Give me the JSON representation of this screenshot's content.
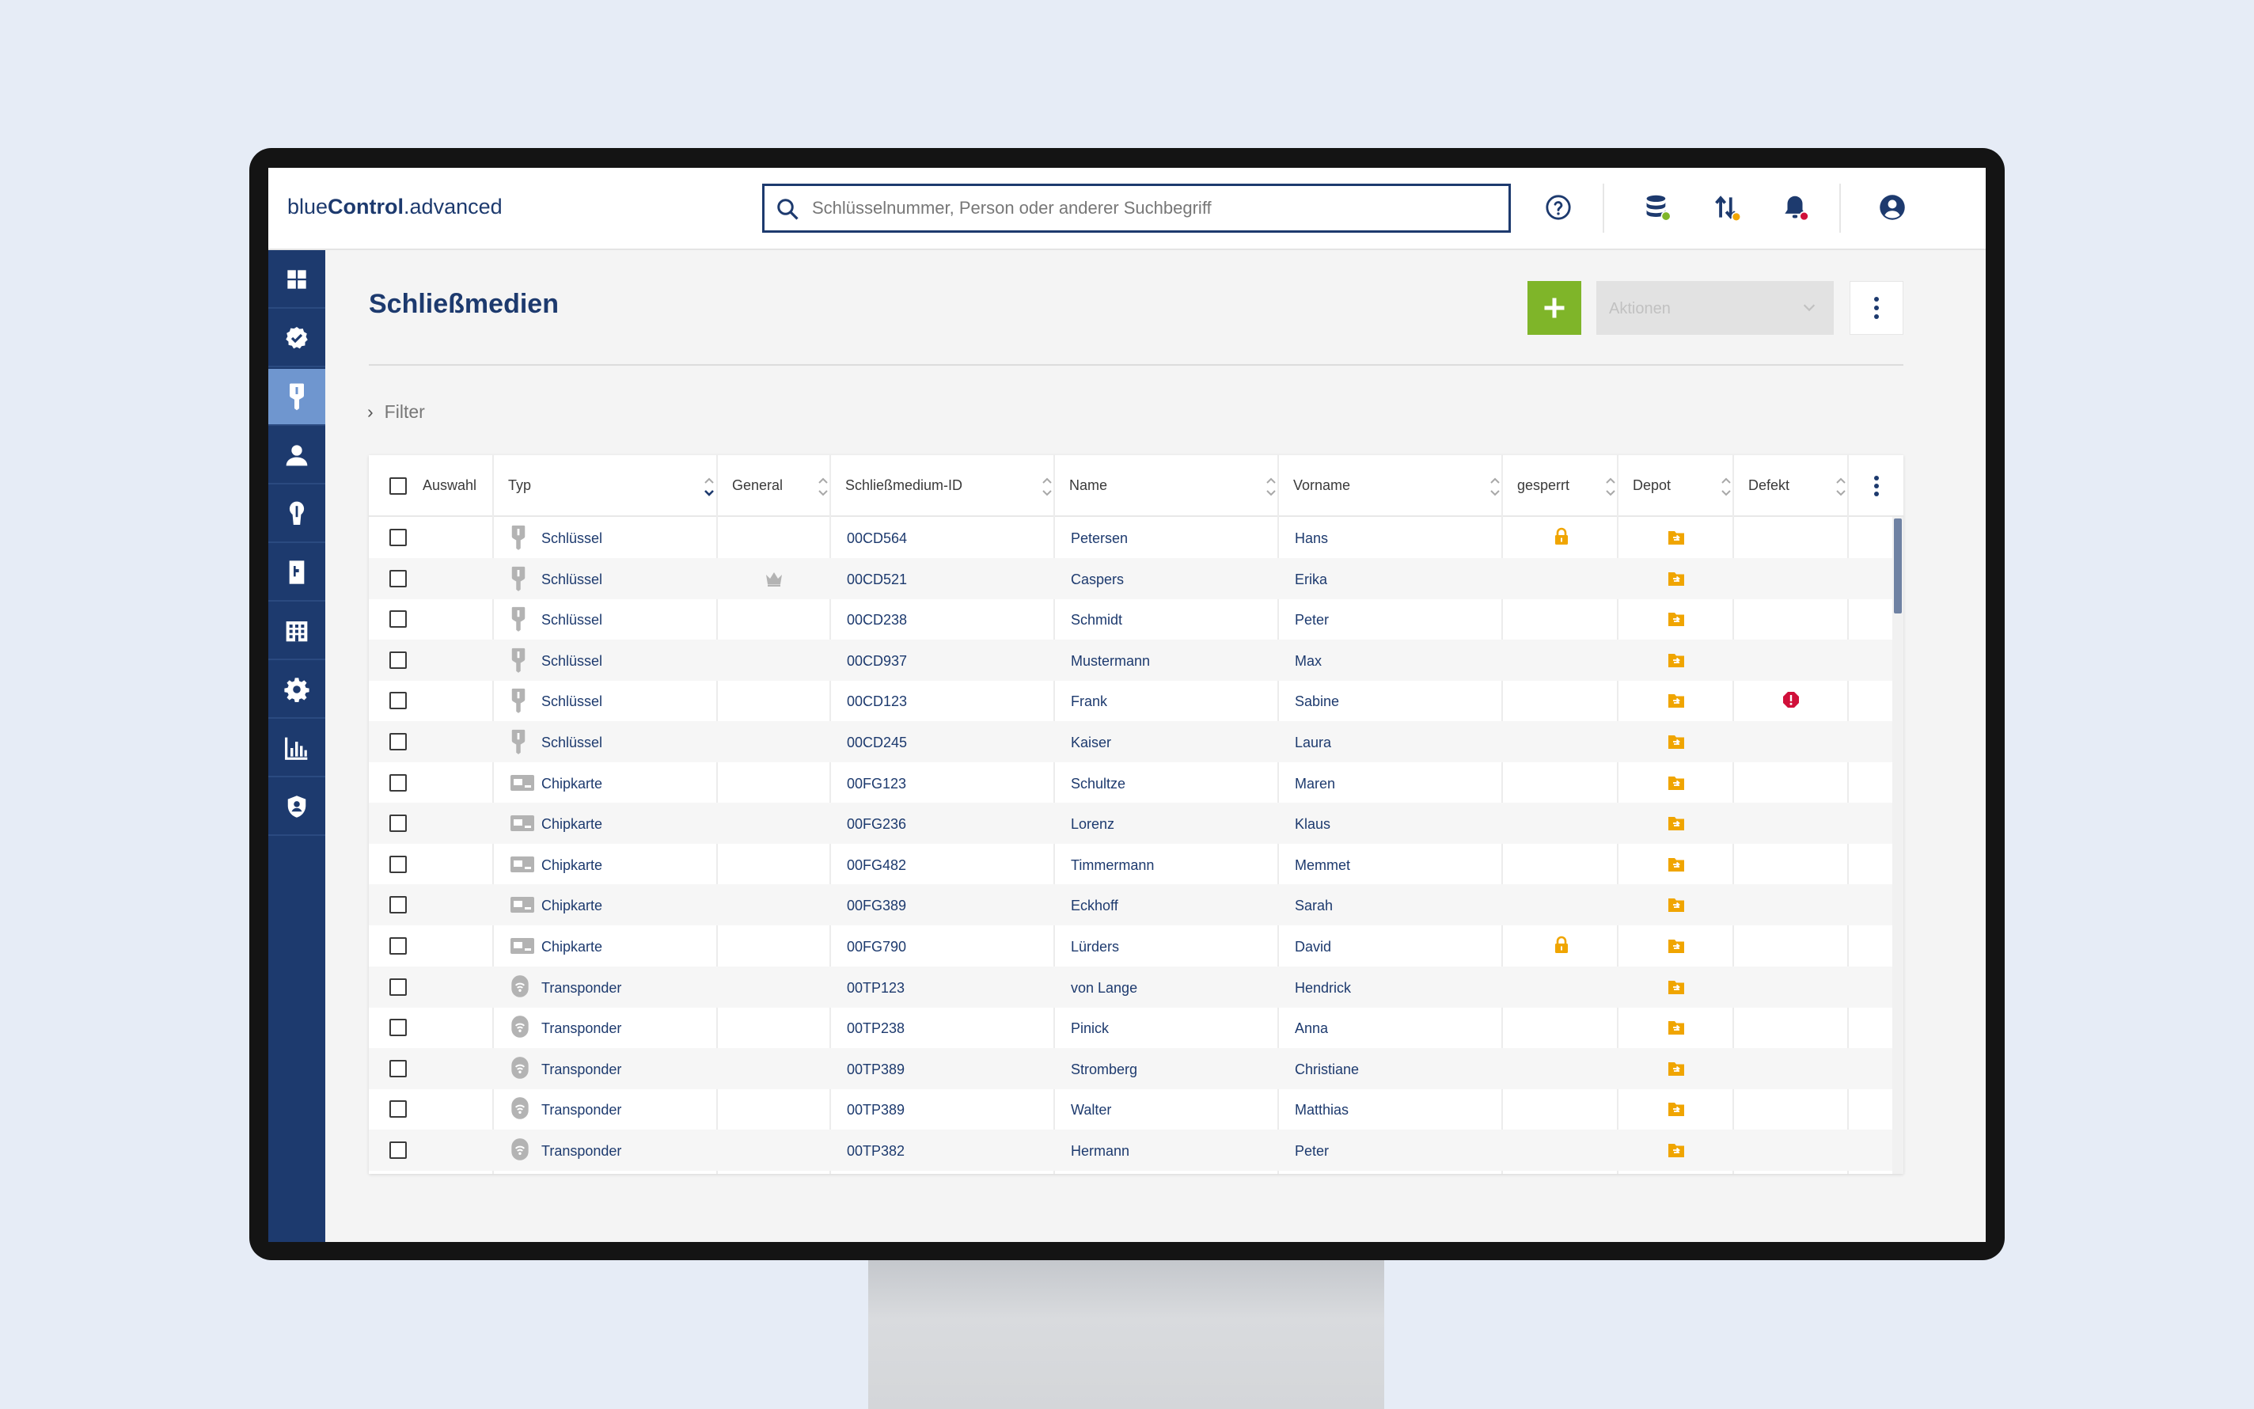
{
  "app": {
    "logo_light": "blue",
    "logo_bold": "Control",
    "logo_suffix": ".advanced"
  },
  "search": {
    "placeholder": "Schlüsselnummer, Person oder anderer Suchbegriff",
    "value": ""
  },
  "topbar": {
    "icons": [
      "help-icon",
      "database-icon",
      "sort-transfer-icon",
      "notification-bell-icon",
      "account-icon"
    ],
    "status_colors": {
      "database": "#7fb529",
      "transfer": "#f0a500",
      "bell": "#d0103a"
    }
  },
  "sidebar": {
    "items": [
      {
        "icon": "dashboard-icon",
        "active": false
      },
      {
        "icon": "badge-check-icon",
        "active": false
      },
      {
        "icon": "key-icon",
        "active": true
      },
      {
        "icon": "person-icon",
        "active": false
      },
      {
        "icon": "cylinder-lock-icon",
        "active": false
      },
      {
        "icon": "door-icon",
        "active": false
      },
      {
        "icon": "building-icon",
        "active": false
      },
      {
        "icon": "settings-icon",
        "active": false
      },
      {
        "icon": "chart-icon",
        "active": false
      },
      {
        "icon": "shield-user-icon",
        "active": false
      }
    ]
  },
  "page": {
    "title": "Schließmedien",
    "actions_label": "Aktionen",
    "filter_label": "Filter"
  },
  "colors": {
    "primary": "#1d3a6e",
    "accent_green": "#7fb529",
    "sidebar_active": "#6f96cf",
    "lock_orange": "#f0a500",
    "defect_red": "#d0103a"
  },
  "table": {
    "columns": [
      "Auswahl",
      "Typ",
      "General",
      "Schließmedium-ID",
      "Name",
      "Vorname",
      "gesperrt",
      "Depot",
      "Defekt"
    ],
    "rows": [
      {
        "typ": "Schlüssel",
        "type_icon": "key-icon",
        "general": false,
        "id": "00CD564",
        "name": "Petersen",
        "vorname": "Hans",
        "gesperrt": true,
        "depot": true,
        "defekt": false
      },
      {
        "typ": "Schlüssel",
        "type_icon": "key-icon",
        "general": true,
        "id": "00CD521",
        "name": "Caspers",
        "vorname": "Erika",
        "gesperrt": false,
        "depot": true,
        "defekt": false
      },
      {
        "typ": "Schlüssel",
        "type_icon": "key-icon",
        "general": false,
        "id": "00CD238",
        "name": "Schmidt",
        "vorname": "Peter",
        "gesperrt": false,
        "depot": true,
        "defekt": false
      },
      {
        "typ": "Schlüssel",
        "type_icon": "key-icon",
        "general": false,
        "id": "00CD937",
        "name": "Mustermann",
        "vorname": "Max",
        "gesperrt": false,
        "depot": true,
        "defekt": false
      },
      {
        "typ": "Schlüssel",
        "type_icon": "key-icon",
        "general": false,
        "id": "00CD123",
        "name": "Frank",
        "vorname": "Sabine",
        "gesperrt": false,
        "depot": true,
        "defekt": true
      },
      {
        "typ": "Schlüssel",
        "type_icon": "key-icon",
        "general": false,
        "id": "00CD245",
        "name": "Kaiser",
        "vorname": "Laura",
        "gesperrt": false,
        "depot": true,
        "defekt": false
      },
      {
        "typ": "Chipkarte",
        "type_icon": "chipcard-icon",
        "general": false,
        "id": "00FG123",
        "name": "Schultze",
        "vorname": "Maren",
        "gesperrt": false,
        "depot": true,
        "defekt": false
      },
      {
        "typ": "Chipkarte",
        "type_icon": "chipcard-icon",
        "general": false,
        "id": "00FG236",
        "name": "Lorenz",
        "vorname": "Klaus",
        "gesperrt": false,
        "depot": true,
        "defekt": false
      },
      {
        "typ": "Chipkarte",
        "type_icon": "chipcard-icon",
        "general": false,
        "id": "00FG482",
        "name": "Timmermann",
        "vorname": "Memmet",
        "gesperrt": false,
        "depot": true,
        "defekt": false
      },
      {
        "typ": "Chipkarte",
        "type_icon": "chipcard-icon",
        "general": false,
        "id": "00FG389",
        "name": "Eckhoff",
        "vorname": "Sarah",
        "gesperrt": false,
        "depot": true,
        "defekt": false
      },
      {
        "typ": "Chipkarte",
        "type_icon": "chipcard-icon",
        "general": false,
        "id": "00FG790",
        "name": "Lürders",
        "vorname": "David",
        "gesperrt": true,
        "depot": true,
        "defekt": false
      },
      {
        "typ": "Transponder",
        "type_icon": "transponder-icon",
        "general": false,
        "id": "00TP123",
        "name": "von Lange",
        "vorname": "Hendrick",
        "gesperrt": false,
        "depot": true,
        "defekt": false
      },
      {
        "typ": "Transponder",
        "type_icon": "transponder-icon",
        "general": false,
        "id": "00TP238",
        "name": "Pinick",
        "vorname": "Anna",
        "gesperrt": false,
        "depot": true,
        "defekt": false
      },
      {
        "typ": "Transponder",
        "type_icon": "transponder-icon",
        "general": false,
        "id": "00TP389",
        "name": "Stromberg",
        "vorname": "Christiane",
        "gesperrt": false,
        "depot": true,
        "defekt": false
      },
      {
        "typ": "Transponder",
        "type_icon": "transponder-icon",
        "general": false,
        "id": "00TP389",
        "name": "Walter",
        "vorname": "Matthias",
        "gesperrt": false,
        "depot": true,
        "defekt": false
      },
      {
        "typ": "Transponder",
        "type_icon": "transponder-icon",
        "general": false,
        "id": "00TP382",
        "name": "Hermann",
        "vorname": "Peter",
        "gesperrt": false,
        "depot": true,
        "defekt": false
      }
    ]
  }
}
